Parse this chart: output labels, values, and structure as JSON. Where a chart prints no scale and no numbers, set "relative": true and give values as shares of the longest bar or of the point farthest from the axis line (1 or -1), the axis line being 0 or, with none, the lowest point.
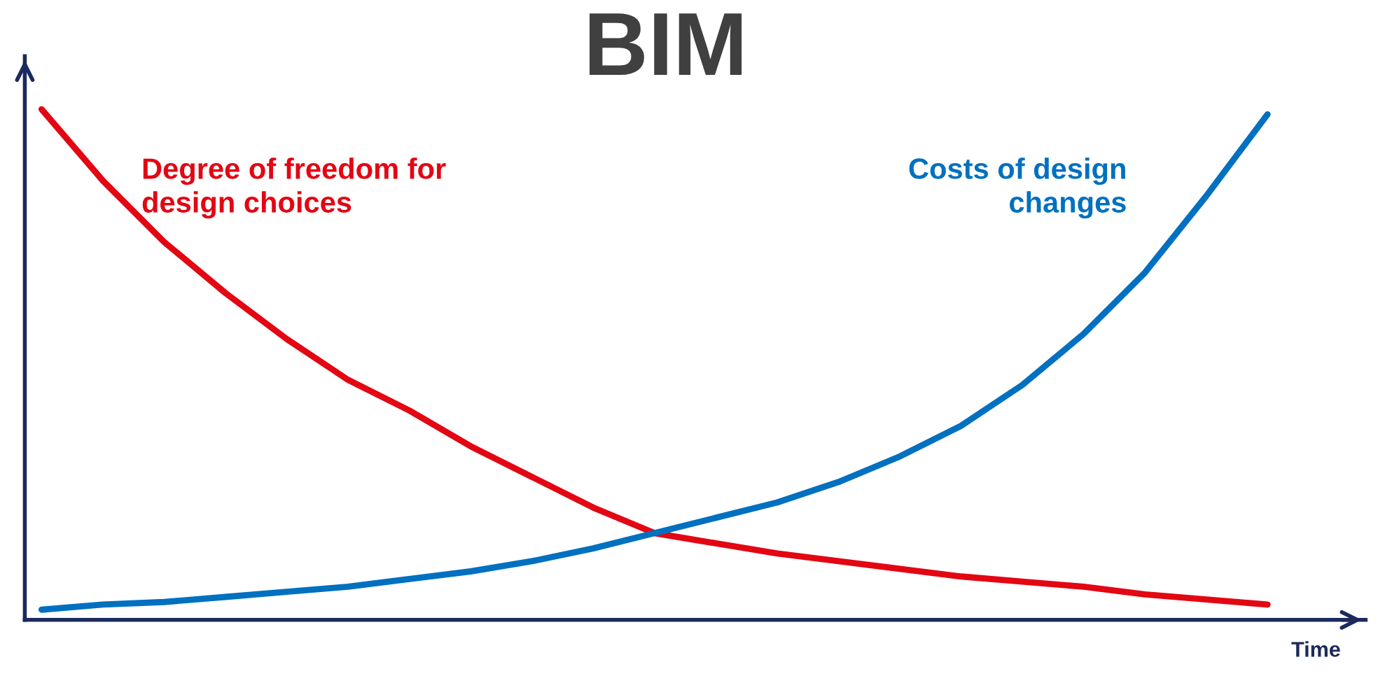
{
  "chart_data": {
    "type": "line",
    "title": "BIM",
    "xlabel": "Time",
    "relative": true,
    "legend": false,
    "marker": "none",
    "line_style": "solid",
    "categories": [
      null,
      null,
      null,
      null,
      null,
      null,
      null,
      null,
      null,
      null,
      null,
      null,
      null,
      null,
      null,
      null,
      null,
      null,
      null,
      null,
      null
    ],
    "series": [
      {
        "name": "Degree of freedom for design choices",
        "color": "#e30613",
        "values": [
          1,
          0.86,
          0.74,
          0.64,
          0.55,
          0.47,
          0.41,
          0.34,
          0.28,
          0.22,
          0.17,
          0.15,
          0.13,
          0.115,
          0.1,
          0.085,
          0.075,
          0.065,
          0.05,
          0.04,
          0.03
        ]
      },
      {
        "name": "Costs of design changes",
        "color": "#0070c0",
        "values": [
          0.02,
          0.03,
          0.035,
          0.045,
          0.055,
          0.065,
          0.08,
          0.095,
          0.115,
          0.14,
          0.17,
          0.2,
          0.23,
          0.27,
          0.32,
          0.38,
          0.46,
          0.56,
          0.68,
          0.83,
          0.99
        ]
      }
    ]
  }
}
